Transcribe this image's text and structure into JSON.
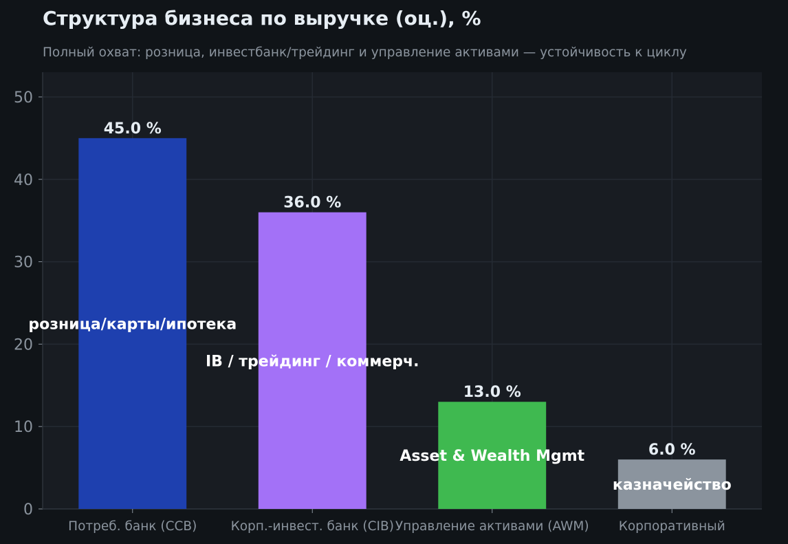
{
  "chart_data": {
    "type": "bar",
    "title": "Структура бизнеса по выручке (оц.), %",
    "subtitle": "Полный охват: розница, инвестбанк/трейдинг и управление активами — устойчивость к циклу",
    "xlabel": "",
    "ylabel": "",
    "categories": [
      "Потреб. банк (CCB)",
      "Корп.-инвест. банк (CIB)",
      "Управление активами (AWM)",
      "Корпоративный"
    ],
    "values": [
      45.0,
      36.0,
      13.0,
      6.0
    ],
    "value_labels": [
      "45.0 %",
      "36.0 %",
      "13.0 %",
      "6.0 %"
    ],
    "bar_annotations": [
      "розница/карты/ипотека",
      "IB / трейдинг / коммерч.",
      "Asset & Wealth Mgmt",
      "казначейство"
    ],
    "colors": [
      "#1e40af",
      "#a371f7",
      "#3fb950",
      "#8b949e"
    ],
    "ylim": [
      0,
      53
    ],
    "yticks": [
      0,
      10,
      20,
      30,
      40,
      50
    ],
    "grid": true,
    "legend": "none",
    "theme": {
      "page_background": "#101418",
      "plot_background": "#181c22",
      "grid_color": "#242a33",
      "text_color": "#e6edf3",
      "muted_text_color": "#8b949e"
    }
  }
}
